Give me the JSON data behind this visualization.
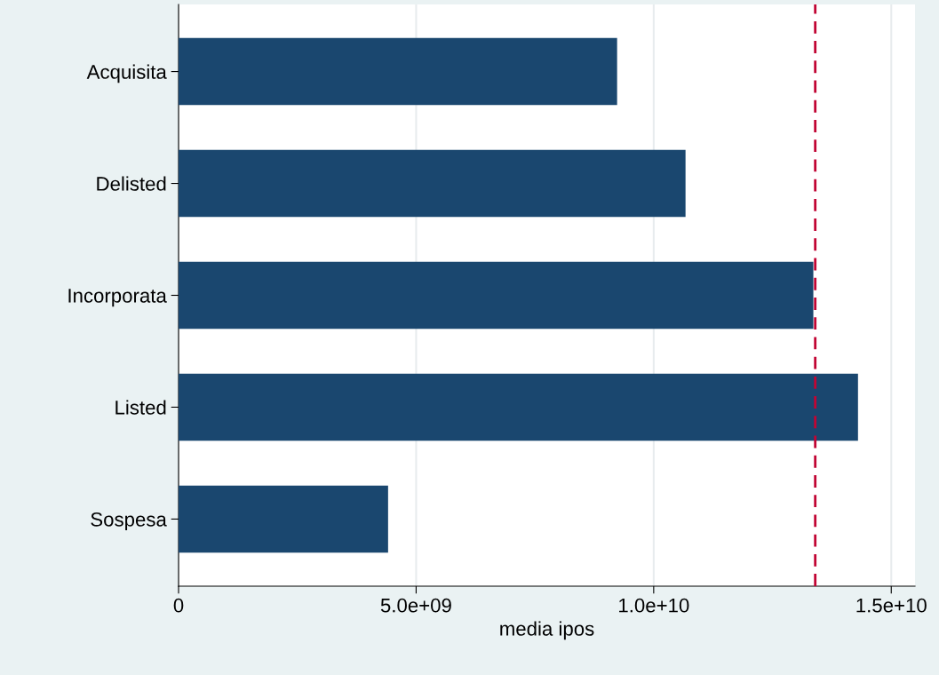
{
  "chart_data": {
    "type": "bar",
    "orientation": "horizontal",
    "xlabel": "media ipos",
    "categories": [
      "Acquisita",
      "Delisted",
      "Incorporata",
      "Listed",
      "Sospesa"
    ],
    "values": [
      9230000000.0,
      10670000000.0,
      13360000000.0,
      14300000000.0,
      4410000000.0
    ],
    "color": "#1a476f",
    "xlim": [
      0,
      15500000000.0
    ],
    "xticks": [
      0,
      {
        "value": 5000000000.0,
        "label": "5.0e+09"
      },
      {
        "value": 10000000000.0,
        "label": "1.0e+10"
      },
      {
        "value": 15000000000.0,
        "label": "1.5e+10"
      }
    ],
    "grid": "x",
    "ref_lines": [
      {
        "axis": "x",
        "value": 13400000000.0,
        "color": "#c10534",
        "line_style": "dashed"
      }
    ]
  }
}
